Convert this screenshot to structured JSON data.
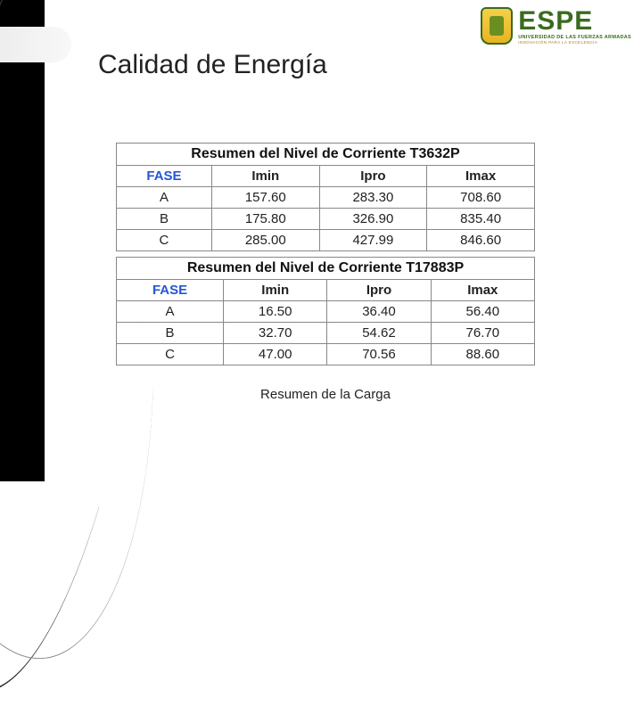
{
  "branding": {
    "logo_main": "ESPE",
    "logo_sub": "UNIVERSIDAD DE LAS FUERZAS ARMADAS",
    "logo_tag": "INNOVACIÓN PARA LA EXCELENCIA"
  },
  "title": "Calidad de Energía",
  "caption": "Resumen de la Carga",
  "colors": {
    "fase_header": "#2456d6",
    "table_border": "#888888",
    "text": "#222222",
    "accent_bar": "#000000",
    "brand_green": "#3a6b1e",
    "brand_gold": "#b07a12",
    "background": "#ffffff"
  },
  "typography": {
    "title_fontsize": 30,
    "cell_fontsize": 15,
    "table_title_fontsize": 16,
    "caption_fontsize": 15,
    "font_family": "Arial"
  },
  "tables": [
    {
      "title": "Resumen del Nivel de Corriente T3632P",
      "columns": [
        "FASE",
        "Imin",
        "Ipro",
        "Imax"
      ],
      "rows": [
        [
          "A",
          "157.60",
          "283.30",
          "708.60"
        ],
        [
          "B",
          "175.80",
          "326.90",
          "835.40"
        ],
        [
          "C",
          "285.00",
          "427.99",
          "846.60"
        ]
      ]
    },
    {
      "title": "Resumen del Nivel de Corriente T17883P",
      "columns": [
        "FASE",
        "Imin",
        "Ipro",
        "Imax"
      ],
      "rows": [
        [
          "A",
          "16.50",
          "36.40",
          "56.40"
        ],
        [
          "B",
          "32.70",
          "54.62",
          "76.70"
        ],
        [
          "C",
          "47.00",
          "70.56",
          "88.60"
        ]
      ]
    }
  ]
}
